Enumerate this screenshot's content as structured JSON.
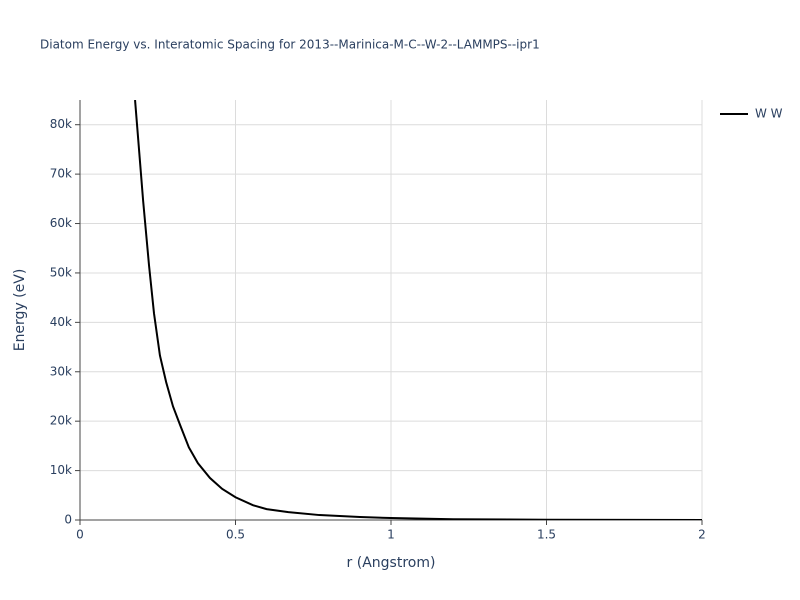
{
  "chart_data": {
    "type": "line",
    "title": "Diatom Energy vs. Interatomic Spacing for 2013--Marinica-M-C--W-2--LAMMPS--ipr1",
    "x_label": "r (Angstrom)",
    "y_label": "Energy (eV)",
    "x": [
      0.177,
      0.203,
      0.222,
      0.238,
      0.257,
      0.277,
      0.299,
      0.322,
      0.35,
      0.379,
      0.418,
      0.457,
      0.5,
      0.556,
      0.6,
      0.67,
      0.77,
      0.9,
      1.0,
      1.2,
      1.5,
      2.0
    ],
    "series": [
      {
        "name": "W W",
        "color": "#000000",
        "values": [
          85000,
          64600,
          51500,
          41800,
          33300,
          27900,
          23000,
          19200,
          14700,
          11500,
          8500,
          6300,
          4600,
          3000,
          2200,
          1600,
          1000,
          600,
          400,
          150,
          50,
          0
        ]
      }
    ],
    "xlim": [
      0,
      2
    ],
    "xticks": [
      0,
      0.5,
      1,
      1.5,
      2
    ],
    "ylim": [
      0,
      85000
    ],
    "yticks": [
      0,
      {
        "value": 10000,
        "label": "10k"
      },
      {
        "value": 20000,
        "label": "20k"
      },
      {
        "value": 30000,
        "label": "30k"
      },
      {
        "value": 40000,
        "label": "40k"
      },
      {
        "value": 50000,
        "label": "50k"
      },
      {
        "value": 60000,
        "label": "60k"
      },
      {
        "value": 70000,
        "label": "70k"
      },
      {
        "value": 80000,
        "label": "80k"
      }
    ],
    "grid": true,
    "legend": "right"
  }
}
